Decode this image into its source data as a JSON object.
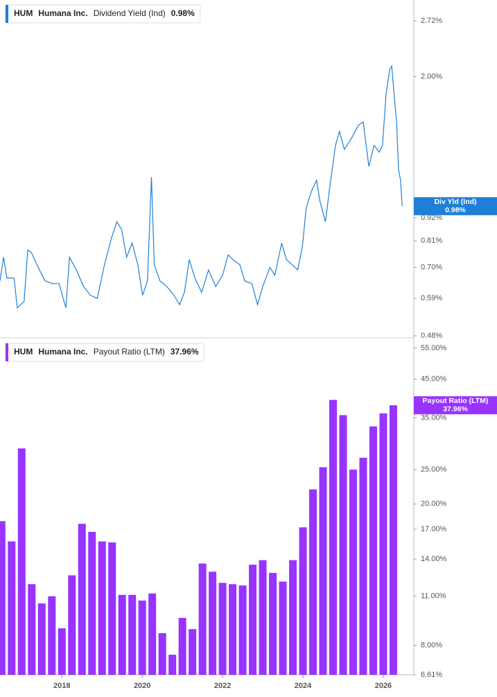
{
  "chart_data": [
    {
      "type": "line",
      "ticker": "HUM",
      "company": "Humana Inc.",
      "metric": "Dividend Yield (Ind)",
      "tag": "Div Yld (Ind)",
      "last_value": 0.98,
      "last_value_label": "0.98%",
      "color": "#1f7fd6",
      "log_scale": true,
      "xlim": [
        2016.46,
        2026.76
      ],
      "ylim": [
        0.475,
        3.05
      ],
      "yticks": [
        {
          "value": 2.72,
          "label": "2.72%"
        },
        {
          "value": 2.0,
          "label": "2.00%"
        },
        {
          "value": 0.92,
          "label": "0.92%"
        },
        {
          "value": 0.81,
          "label": "0.81%"
        },
        {
          "value": 0.7,
          "label": "0.70%"
        },
        {
          "value": 0.59,
          "label": "0.59%"
        },
        {
          "value": 0.48,
          "label": "0.48%"
        }
      ],
      "x": [
        2016.46,
        2016.55,
        2016.63,
        2016.81,
        2016.89,
        2017.06,
        2017.15,
        2017.24,
        2017.41,
        2017.58,
        2017.76,
        2017.93,
        2018.1,
        2018.19,
        2018.36,
        2018.54,
        2018.71,
        2018.88,
        2019.06,
        2019.23,
        2019.37,
        2019.49,
        2019.61,
        2019.75,
        2019.89,
        2020.01,
        2020.13,
        2020.23,
        2020.3,
        2020.44,
        2020.61,
        2020.79,
        2020.93,
        2021.05,
        2021.17,
        2021.31,
        2021.48,
        2021.65,
        2021.83,
        2022.0,
        2022.14,
        2022.26,
        2022.43,
        2022.55,
        2022.73,
        2022.87,
        2023.0,
        2023.18,
        2023.3,
        2023.47,
        2023.59,
        2023.73,
        2023.87,
        2023.99,
        2024.08,
        2024.22,
        2024.34,
        2024.42,
        2024.56,
        2024.68,
        2024.81,
        2024.91,
        2025.03,
        2025.2,
        2025.38,
        2025.5,
        2025.64,
        2025.77,
        2025.9,
        2025.98,
        2026.07,
        2026.16,
        2026.21,
        2026.26,
        2026.33,
        2026.38,
        2026.43,
        2026.47
      ],
      "values": [
        0.65,
        0.74,
        0.66,
        0.66,
        0.56,
        0.58,
        0.77,
        0.76,
        0.7,
        0.65,
        0.64,
        0.64,
        0.56,
        0.74,
        0.69,
        0.63,
        0.6,
        0.59,
        0.71,
        0.82,
        0.9,
        0.86,
        0.74,
        0.8,
        0.71,
        0.6,
        0.65,
        1.15,
        0.71,
        0.65,
        0.63,
        0.6,
        0.57,
        0.61,
        0.73,
        0.66,
        0.61,
        0.69,
        0.63,
        0.67,
        0.75,
        0.73,
        0.71,
        0.65,
        0.64,
        0.57,
        0.63,
        0.7,
        0.67,
        0.8,
        0.73,
        0.71,
        0.69,
        0.79,
        0.97,
        1.07,
        1.13,
        1.01,
        0.9,
        1.11,
        1.37,
        1.48,
        1.34,
        1.42,
        1.53,
        1.56,
        1.22,
        1.37,
        1.32,
        1.37,
        1.82,
        2.08,
        2.12,
        1.86,
        1.56,
        1.2,
        1.13,
        0.98
      ]
    },
    {
      "type": "bar",
      "ticker": "HUM",
      "company": "Humana Inc.",
      "metric": "Payout Ratio (LTM)",
      "tag": "Payout Ratio (LTM)",
      "last_value": 37.96,
      "last_value_label": "37.96%",
      "color": "#9933ff",
      "log_scale": true,
      "xlim": [
        2016.46,
        2026.76
      ],
      "xticks": [
        2018,
        2020,
        2022,
        2024,
        2026
      ],
      "ylim": [
        6.61,
        57.5
      ],
      "yticks": [
        {
          "value": 55,
          "label": "55.00%"
        },
        {
          "value": 45,
          "label": "45.00%"
        },
        {
          "value": 35,
          "label": "35.00%"
        },
        {
          "value": 25,
          "label": "25.00%"
        },
        {
          "value": 20,
          "label": "20.00%"
        },
        {
          "value": 17,
          "label": "17.00%"
        },
        {
          "value": 14,
          "label": "14.00%"
        },
        {
          "value": 11,
          "label": "11.00%"
        },
        {
          "value": 8,
          "label": "8.00%"
        },
        {
          "value": 6.61,
          "label": "6.61%"
        }
      ],
      "x": [
        2016.5,
        2016.75,
        2017.0,
        2017.25,
        2017.5,
        2017.75,
        2018.0,
        2018.25,
        2018.5,
        2018.75,
        2019.0,
        2019.25,
        2019.5,
        2019.75,
        2020.0,
        2020.25,
        2020.5,
        2020.75,
        2021.0,
        2021.25,
        2021.5,
        2021.75,
        2022.0,
        2022.25,
        2022.5,
        2022.75,
        2023.0,
        2023.25,
        2023.5,
        2023.75,
        2024.0,
        2024.25,
        2024.5,
        2024.75,
        2025.0,
        2025.25,
        2025.5,
        2025.75,
        2026.0,
        2026.25
      ],
      "values": [
        17.9,
        15.7,
        28.7,
        11.9,
        10.5,
        11.0,
        8.94,
        12.6,
        17.6,
        16.7,
        15.7,
        15.6,
        11.1,
        11.1,
        10.7,
        11.2,
        8.66,
        7.53,
        9.56,
        8.89,
        13.6,
        12.9,
        12.0,
        11.9,
        11.8,
        13.5,
        13.9,
        12.8,
        12.1,
        13.9,
        17.2,
        22.0,
        25.4,
        39.3,
        35.6,
        25.0,
        27.0,
        33.1,
        36.0,
        37.96
      ]
    }
  ]
}
